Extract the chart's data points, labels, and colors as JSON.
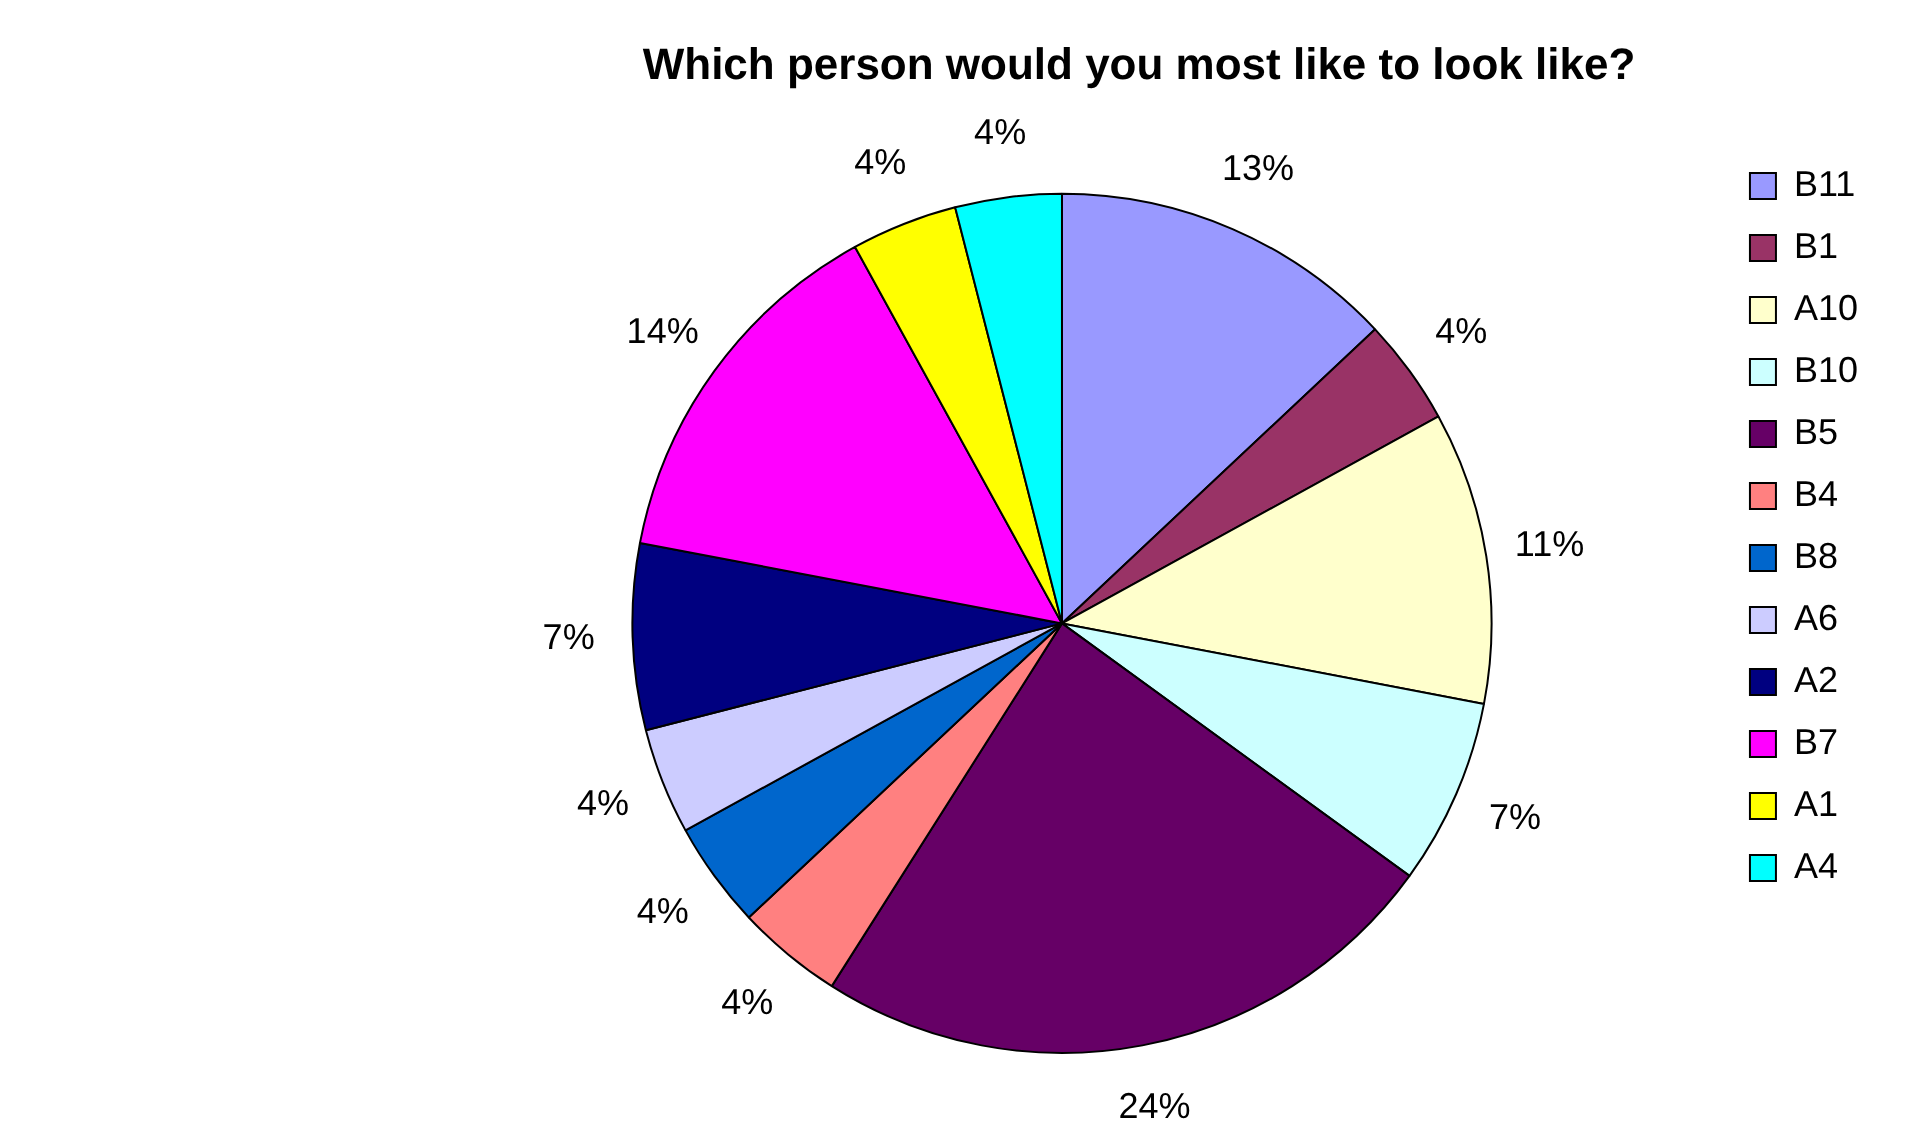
{
  "chart_data": {
    "type": "pie",
    "title": "Which person would you most like to look like?",
    "categories": [
      "B11",
      "B1",
      "A10",
      "B10",
      "B5",
      "B4",
      "B8",
      "A6",
      "A2",
      "B7",
      "A1",
      "A4"
    ],
    "values": [
      13,
      4,
      11,
      7,
      24,
      4,
      4,
      4,
      7,
      14,
      4,
      4
    ],
    "value_labels": [
      "13%",
      "4%",
      "11%",
      "7%",
      "24%",
      "4%",
      "4%",
      "4%",
      "7%",
      "14%",
      "4%",
      "4%"
    ],
    "colors": [
      "#9999ff",
      "#993366",
      "#ffffcc",
      "#ccffff",
      "#660066",
      "#ff8080",
      "#0066cc",
      "#ccccff",
      "#000080",
      "#ff00ff",
      "#ffff00",
      "#00ffff"
    ],
    "legend": "right"
  }
}
